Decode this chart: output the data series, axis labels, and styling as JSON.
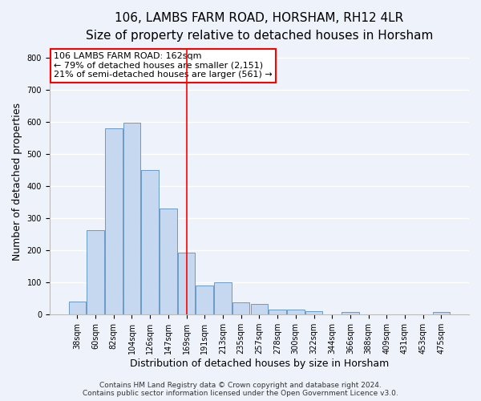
{
  "title1": "106, LAMBS FARM ROAD, HORSHAM, RH12 4LR",
  "title2": "Size of property relative to detached houses in Horsham",
  "xlabel": "Distribution of detached houses by size in Horsham",
  "ylabel": "Number of detached properties",
  "bar_labels": [
    "38sqm",
    "60sqm",
    "82sqm",
    "104sqm",
    "126sqm",
    "147sqm",
    "169sqm",
    "191sqm",
    "213sqm",
    "235sqm",
    "257sqm",
    "278sqm",
    "300sqm",
    "322sqm",
    "344sqm",
    "366sqm",
    "388sqm",
    "409sqm",
    "431sqm",
    "453sqm",
    "475sqm"
  ],
  "bar_heights": [
    40,
    263,
    580,
    598,
    450,
    330,
    193,
    90,
    100,
    38,
    32,
    15,
    15,
    10,
    0,
    7,
    0,
    0,
    0,
    0,
    7
  ],
  "bar_color": "#c5d8f0",
  "bar_edge_color": "#5a8fc0",
  "ylim": [
    0,
    830
  ],
  "yticks": [
    0,
    100,
    200,
    300,
    400,
    500,
    600,
    700,
    800
  ],
  "vline_color": "red",
  "vline_pos": 6.0,
  "annotation_line1": "106 LAMBS FARM ROAD: 162sqm",
  "annotation_line2": "← 79% of detached houses are smaller (2,151)",
  "annotation_line3": "21% of semi-detached houses are larger (561) →",
  "footer_line1": "Contains HM Land Registry data © Crown copyright and database right 2024.",
  "footer_line2": "Contains public sector information licensed under the Open Government Licence v3.0.",
  "background_color": "#eef2fb",
  "grid_color": "white",
  "title_fontsize": 11,
  "subtitle_fontsize": 9.5,
  "axis_label_fontsize": 9,
  "tick_fontsize": 7,
  "annotation_fontsize": 8,
  "footer_fontsize": 6.5
}
